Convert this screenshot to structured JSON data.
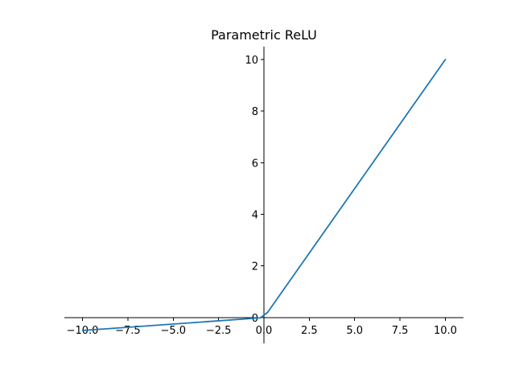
{
  "chart_data": {
    "type": "line",
    "title": "Parametric ReLU",
    "xlabel": "",
    "ylabel": "",
    "xlim": [
      -11.0,
      11.0
    ],
    "ylim": [
      -1.0,
      10.5
    ],
    "grid": false,
    "x_ticks": [
      -10.0,
      -7.5,
      -5.0,
      -2.5,
      0.0,
      2.5,
      5.0,
      7.5,
      10.0
    ],
    "x_tick_labels": [
      "−10.0",
      "−7.5",
      "−5.0",
      "−2.5",
      "0.0",
      "2.5",
      "5.0",
      "7.5",
      "10.0"
    ],
    "y_ticks": [
      0,
      2,
      4,
      6,
      8,
      10
    ],
    "y_tick_labels": [
      "0",
      "2",
      "4",
      "6",
      "8",
      "10"
    ],
    "series": [
      {
        "color": "#1f77b4",
        "x": [
          -10.0,
          -0.2,
          0.2,
          10.0
        ],
        "y": [
          -0.5,
          -0.01,
          0.2,
          10.0
        ]
      }
    ]
  }
}
